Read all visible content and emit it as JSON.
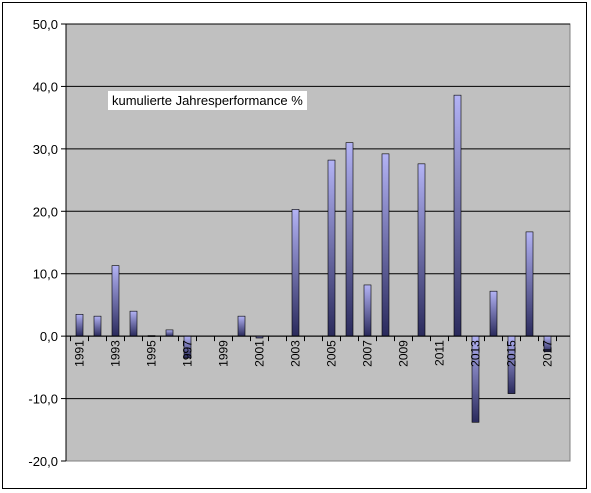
{
  "chart_data": {
    "type": "bar",
    "title": "",
    "annotation": "kumulierte Jahresperformance %",
    "xlabel": "",
    "ylabel": "",
    "ylim": [
      -20,
      50
    ],
    "yticks": [
      -20,
      -10,
      0,
      10,
      20,
      30,
      40,
      50
    ],
    "ytick_labels": [
      "-20,0",
      "-10,0",
      "0,0",
      "10,0",
      "20,0",
      "30,0",
      "40,0",
      "50,0"
    ],
    "grid": true,
    "categories": [
      1991,
      1992,
      1993,
      1994,
      1995,
      1996,
      1997,
      1998,
      1999,
      2000,
      2001,
      2002,
      2003,
      2004,
      2005,
      2006,
      2007,
      2008,
      2009,
      2010,
      2011,
      2012,
      2013,
      2014,
      2015,
      2016,
      2017
    ],
    "xtick_labels": [
      "1991",
      "1993",
      "1995",
      "1997",
      "1999",
      "2001",
      "2003",
      "2005",
      "2007",
      "2009",
      "2011",
      "2013",
      "2015",
      "2017"
    ],
    "values": [
      3.5,
      3.2,
      11.3,
      4.0,
      0.1,
      1.0,
      -3.5,
      0,
      0,
      3.2,
      -0.3,
      0,
      20.3,
      0,
      28.2,
      31.0,
      8.2,
      29.2,
      0,
      27.6,
      0,
      38.6,
      -13.8,
      7.2,
      -9.2,
      16.7,
      -2.5
    ],
    "colors": {
      "plot_bg": "#c0c0c0",
      "bar_top": "#b3b3f5",
      "bar_bottom": "#2a2a5c",
      "bar_edge": "#000000",
      "grid": "#000000"
    }
  }
}
